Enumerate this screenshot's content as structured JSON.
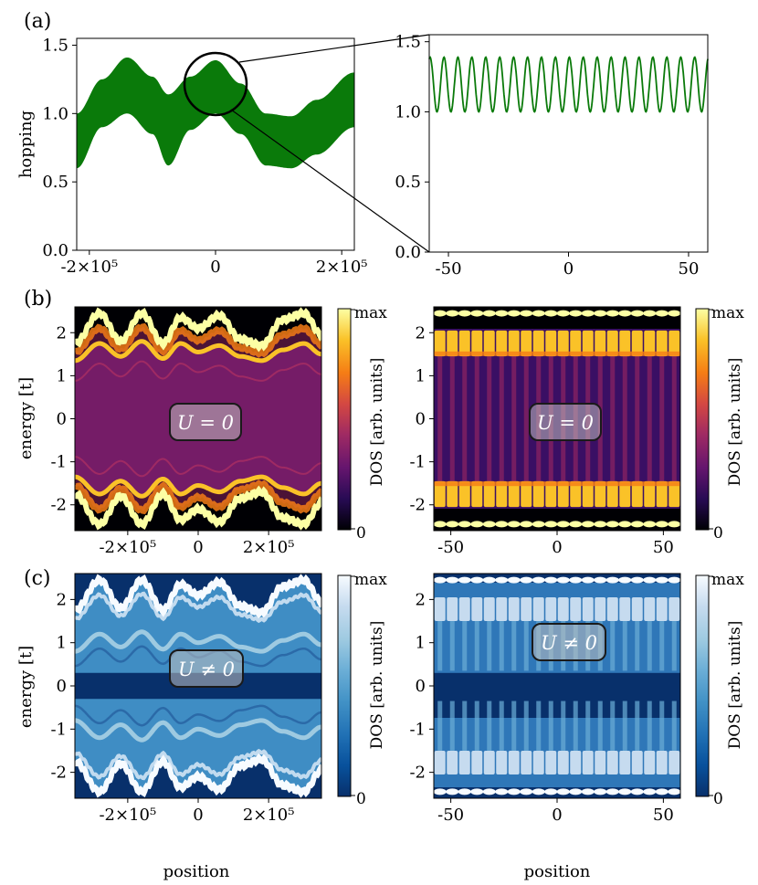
{
  "colors": {
    "green": "#0a7a0a",
    "badge_fill": "#bfbfbf",
    "badge_edge": "#1a1a1a",
    "inferno_stops": [
      "#000004",
      "#280b54",
      "#65156e",
      "#9f2a63",
      "#d44842",
      "#f57d15",
      "#fac228",
      "#fcffa4"
    ],
    "blues_stops": [
      "#08306b",
      "#08519c",
      "#2171b5",
      "#4292c6",
      "#6baed6",
      "#9ecae1",
      "#c6dbef",
      "#f7fbff"
    ]
  },
  "panels": {
    "a": {
      "label": "(a)"
    },
    "b": {
      "label": "(b)"
    },
    "c": {
      "label": "(c)"
    }
  },
  "badges": {
    "u_zero": "U = 0",
    "u_nonzero": "U ≠ 0"
  },
  "colorbar": {
    "label": "DOS [arb. units]",
    "top": "max",
    "bottom": "0"
  },
  "axes": {
    "hopping_ylabel": "hopping",
    "energy_ylabel": "energy [t]",
    "position_xlabel": "position"
  },
  "ticks": {
    "hopping_y": [
      "0.0",
      "0.5",
      "1.0",
      "1.5"
    ],
    "global_x": [
      "-2×10⁵",
      "0",
      "2×10⁵"
    ],
    "local_x": [
      "-50",
      "0",
      "50"
    ],
    "energy_y": [
      "-2",
      "-1",
      "0",
      "1",
      "2"
    ]
  },
  "chart_data": [
    {
      "panel": "(a) left",
      "type": "area",
      "ylabel": "hopping",
      "x_range": [
        -2.2,
        2.2
      ],
      "x_unit": "×10⁵",
      "ylim": [
        0,
        1.55
      ],
      "xticks": [
        "-2×10⁵",
        "0",
        "2×10⁵"
      ],
      "yticks": [
        0.0,
        0.5,
        1.0,
        1.5
      ],
      "band_upper": [
        1.0,
        1.25,
        1.41,
        1.27,
        1.14,
        1.27,
        1.39,
        1.22,
        1.0,
        0.98,
        1.1,
        1.3
      ],
      "band_lower": [
        0.6,
        0.9,
        1.0,
        0.85,
        0.62,
        0.88,
        1.0,
        0.85,
        0.62,
        0.6,
        0.7,
        0.9
      ],
      "band_x": [
        -2.2,
        -1.8,
        -1.4,
        -1.0,
        -0.75,
        -0.4,
        0.0,
        0.4,
        0.8,
        1.2,
        1.6,
        2.2
      ]
    },
    {
      "panel": "(a) right",
      "type": "line",
      "x_range": [
        -58,
        58
      ],
      "ylim": [
        0,
        1.55
      ],
      "xticks": [
        -50,
        0,
        50
      ],
      "yticks": [
        0.0,
        0.5,
        1.0,
        1.5
      ],
      "oscillation": {
        "min": 1.0,
        "max": 1.39,
        "periods": 20
      }
    },
    {
      "panel": "(b) left",
      "type": "heatmap",
      "colormap": "inferno",
      "ylabel": "energy [t]",
      "x_range": [
        -3.5,
        3.5
      ],
      "ylim": [
        -2.6,
        2.6
      ],
      "xticks": [
        "-2×10⁵",
        "0",
        "2×10⁵"
      ],
      "yticks": [
        -2,
        -1,
        0,
        1,
        2
      ],
      "annotation": "U = 0"
    },
    {
      "panel": "(b) right",
      "type": "heatmap",
      "colormap": "inferno",
      "x_range": [
        -58,
        58
      ],
      "ylim": [
        -2.6,
        2.6
      ],
      "xticks": [
        -50,
        0,
        50
      ],
      "yticks": [
        -2,
        -1,
        0,
        1,
        2
      ],
      "annotation": "U = 0"
    },
    {
      "panel": "(c) left",
      "type": "heatmap",
      "colormap": "blues_r",
      "ylabel": "energy [t]",
      "xlabel": "position",
      "x_range": [
        -3.5,
        3.5
      ],
      "ylim": [
        -2.6,
        2.6
      ],
      "xticks": [
        "-2×10⁵",
        "0",
        "2×10⁵"
      ],
      "yticks": [
        -2,
        -1,
        0,
        1,
        2
      ],
      "annotation": "U ≠ 0"
    },
    {
      "panel": "(c) right",
      "type": "heatmap",
      "colormap": "blues_r",
      "xlabel": "position",
      "x_range": [
        -58,
        58
      ],
      "ylim": [
        -2.6,
        2.6
      ],
      "xticks": [
        -50,
        0,
        50
      ],
      "yticks": [
        -2,
        -1,
        0,
        1,
        2
      ],
      "annotation": "U ≠ 0"
    }
  ]
}
